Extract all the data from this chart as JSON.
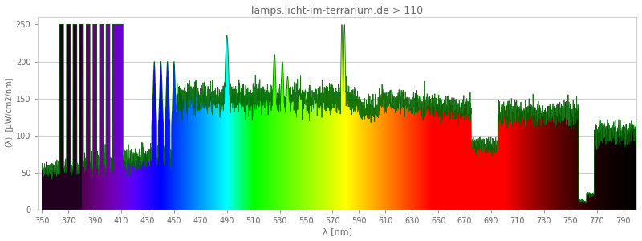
{
  "title": "lamps.licht-im-terrarium.de > 110",
  "xlabel": "λ [nm]",
  "ylabel": "I(λ)  [μW/cm2/nm]",
  "xlim": [
    347,
    800
  ],
  "ylim": [
    0,
    260
  ],
  "yticks": [
    0,
    50,
    100,
    150,
    200,
    250
  ],
  "xticks": [
    350,
    370,
    390,
    410,
    430,
    450,
    470,
    490,
    510,
    530,
    550,
    570,
    590,
    610,
    630,
    650,
    670,
    690,
    710,
    730,
    750,
    770,
    790
  ],
  "grid_color": "#cccccc",
  "bg_color": "#f5f5f5",
  "spectrum_start": 350,
  "spectrum_end": 800,
  "title_color": "#666666",
  "axis_color": "#666666",
  "line_color": "#006600"
}
